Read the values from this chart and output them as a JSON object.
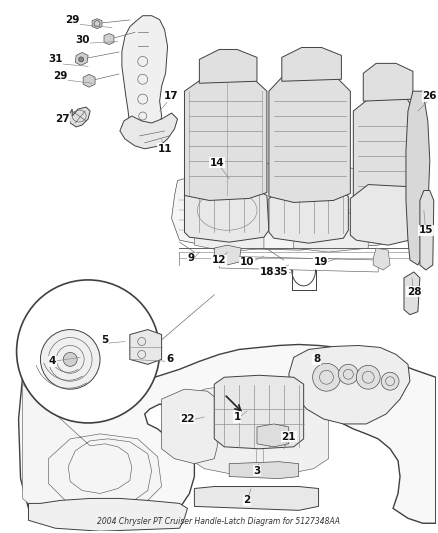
{
  "title": "2004 Chrysler PT Cruiser Handle-Latch Diagram for 5127348AA",
  "bg_color": "#ffffff",
  "fig_width": 4.38,
  "fig_height": 5.33,
  "dpi": 100,
  "font_size": 7.5,
  "label_color": "#111111",
  "lw_heavy": 1.0,
  "lw_med": 0.7,
  "lw_light": 0.45,
  "draw_color": "#404040",
  "draw_color2": "#606060",
  "draw_color3": "#888888"
}
